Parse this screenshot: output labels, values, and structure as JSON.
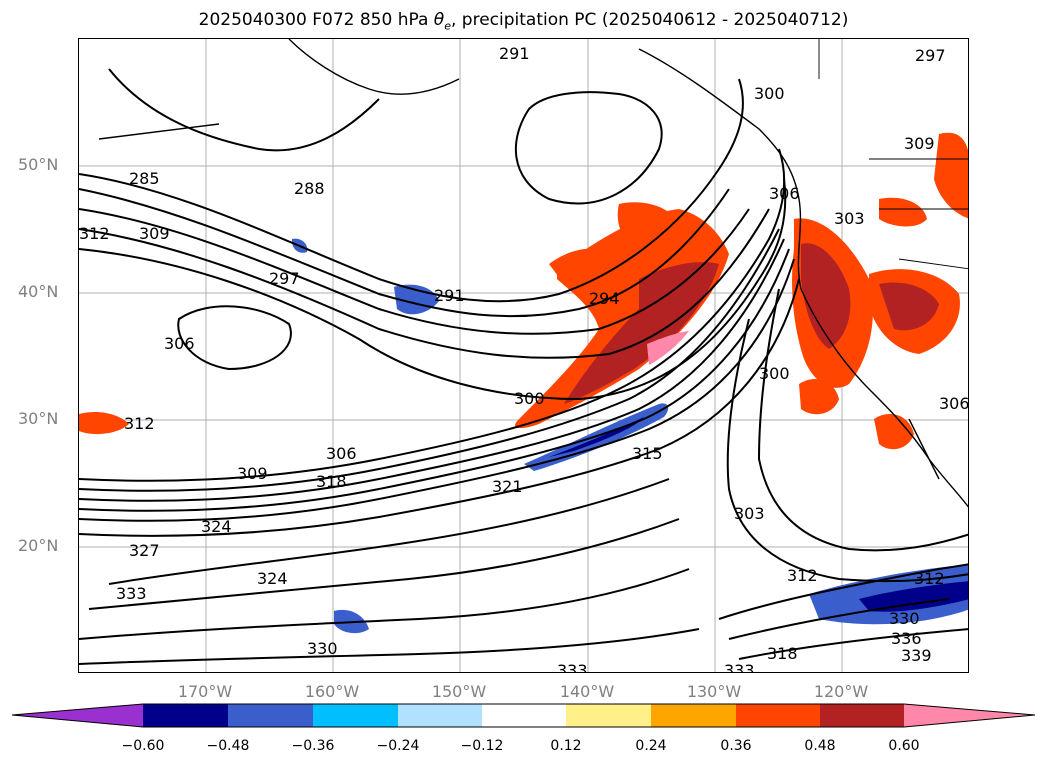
{
  "title": "2025040300 F072 850 hPa θe, precipitation PC (2025040612 - 2025040712)",
  "latitude_labels": [
    "50°N",
    "40°N",
    "30°N",
    "20°N"
  ],
  "longitude_labels": [
    "170°W",
    "160°W",
    "150°W",
    "140°W",
    "130°W",
    "120°W"
  ],
  "contour_labels": [
    "285",
    "288",
    "291",
    "291",
    "294",
    "297",
    "300",
    "300",
    "303",
    "303",
    "306",
    "306",
    "306",
    "306",
    "309",
    "309",
    "309",
    "312",
    "312",
    "312",
    "312",
    "315",
    "318",
    "318",
    "321",
    "324",
    "324",
    "327",
    "330",
    "330",
    "333",
    "333",
    "333",
    "336",
    "339",
    "297",
    "300"
  ],
  "colorbar": {
    "ticks": [
      "−0.60",
      "−0.48",
      "−0.36",
      "−0.24",
      "−0.12",
      "0.12",
      "0.24",
      "0.36",
      "0.48",
      "0.60"
    ],
    "colors": [
      "#9b30d0",
      "#00008b",
      "#3a5fcd",
      "#00bfff",
      "#b0e2ff",
      "#ffffff",
      "#fff08a",
      "#ffa500",
      "#ff4500",
      "#b22222",
      "#ff88aa"
    ]
  },
  "map": {
    "extent_lon": [
      -180,
      -110
    ],
    "extent_lat": [
      10,
      60
    ],
    "projection": "PlateCarree",
    "gridlines": true,
    "contour_color": "#000000"
  }
}
